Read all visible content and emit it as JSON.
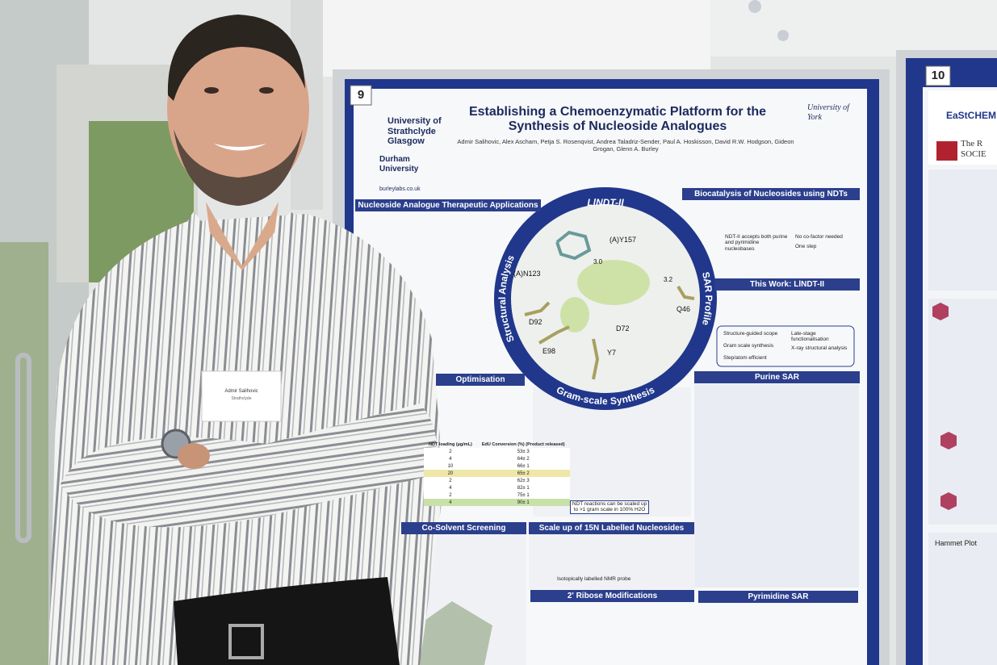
{
  "poster": {
    "number": "9",
    "logos": {
      "strathclyde": "University of Strathclyde Glasgow",
      "durham": "Durham University",
      "york": "University of York",
      "web": "burleylabs.co.uk"
    },
    "title": "Establishing a Chemoenzymatic Platform for the Synthesis of Nucleoside Analogues",
    "authors": "Admir Salihovic, Alex Ascham, Petja S. Rosenqvist, Andrea Taladriz-Sender, Paul A. Hoskisson, David R.W. Hodgson, Gideon Grogan, Glenn A. Burley",
    "sections": [
      "Nucleoside Analogue Therapeutic Applications",
      "Biocatalysis of Nucleosides using NDTs",
      "This Work: LlNDT-II",
      "Purine SAR",
      "Optimisation",
      "Co-Solvent Screening",
      "Scale up of 15N Labelled Nucleosides",
      "2' Ribose Modifications",
      "Pyrimidine SAR"
    ],
    "circle": {
      "title": "LlNDT-II",
      "left": "Structural Analysis",
      "right": "SAR Profile",
      "bottom": "Gram-scale Synthesis",
      "residues": [
        "(A)Y157",
        "(A)N123",
        "D92",
        "E98",
        "Y7",
        "D72",
        "Q46"
      ],
      "distances": [
        "3.0",
        "3.2"
      ]
    },
    "bullets": [
      "NDT-II accepts both purine and pyrimidine nucleobases",
      "No co-factor needed",
      "One step"
    ],
    "features": [
      "Structure-guided scope",
      "Gram scale synthesis",
      "Step/atom efficient",
      "Late-stage functionalisation",
      "X-ray structural analysis"
    ],
    "scale_note": "NDT reactions can be scaled up to >1 gram scale in 100% H2O",
    "nmr_note": "Isotopically labelled NMR probe",
    "table": {
      "header": [
        "NDT loading (µg/mL)",
        "EdU Conversion (%) (Product released)"
      ],
      "rows": [
        [
          "2",
          "53± 3"
        ],
        [
          "4",
          "64± 2"
        ],
        [
          "10",
          "66± 1"
        ],
        [
          "20",
          "65± 2"
        ],
        [
          "2",
          "62± 3"
        ],
        [
          "4",
          "82± 1"
        ],
        [
          "2",
          "75± 1"
        ],
        [
          "4",
          "90± 1"
        ]
      ]
    }
  },
  "next_poster": {
    "number": "10",
    "brand": "EaStCHEM",
    "society": "The R SOCIE",
    "plot": "Hammet Plot"
  },
  "badge": {
    "name": "Admir Salihovic",
    "org": "Strathclyde"
  }
}
